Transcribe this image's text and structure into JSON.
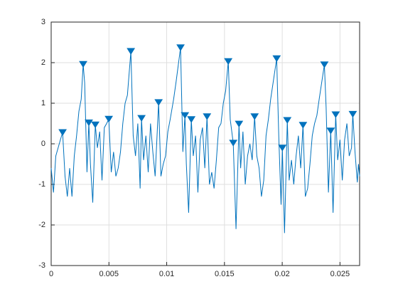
{
  "chart_data": {
    "type": "line",
    "xlim": [
      0,
      0.0267
    ],
    "ylim": [
      -3,
      3
    ],
    "xticks": [
      0,
      0.005,
      0.01,
      0.015,
      0.02,
      0.025
    ],
    "yticks": [
      -3,
      -2,
      -1,
      0,
      1,
      2,
      3
    ],
    "grid": true,
    "series": [
      {
        "color": "#0072BD",
        "marker": "none",
        "x": [
          0,
          0.0002,
          0.0004,
          0.0006,
          0.0008,
          0.00099,
          0.0012,
          0.0014,
          0.0016,
          0.0018,
          0.002,
          0.0022,
          0.0024,
          0.0026,
          0.00277,
          0.0029,
          0.0031,
          0.00326,
          0.0034,
          0.0036,
          0.00382,
          0.004,
          0.0042,
          0.0044,
          0.0046,
          0.0048,
          0.00499,
          0.0052,
          0.0054,
          0.0056,
          0.0058,
          0.006,
          0.0062,
          0.0064,
          0.0066,
          0.0069,
          0.0071,
          0.0073,
          0.0075,
          0.0077,
          0.00782,
          0.008,
          0.0082,
          0.0084,
          0.0086,
          0.0088,
          0.009,
          0.0093,
          0.0095,
          0.0097,
          0.0099,
          0.0101,
          0.0103,
          0.0106,
          0.0108,
          0.0112,
          0.0114,
          0.01158,
          0.0117,
          0.0119,
          0.01213,
          0.0123,
          0.0125,
          0.0127,
          0.0129,
          0.0131,
          0.0133,
          0.01349,
          0.0137,
          0.0139,
          0.0141,
          0.0143,
          0.0145,
          0.0147,
          0.0149,
          0.0151,
          0.01533,
          0.0155,
          0.01576,
          0.0159,
          0.016,
          0.01626,
          0.0164,
          0.0166,
          0.0168,
          0.017,
          0.0172,
          0.0174,
          0.01761,
          0.0178,
          0.018,
          0.0182,
          0.0184,
          0.0186,
          0.0188,
          0.019,
          0.01952,
          0.0197,
          0.0199,
          0.02001,
          0.0202,
          0.02044,
          0.0206,
          0.0208,
          0.021,
          0.0212,
          0.0214,
          0.0216,
          0.0218,
          0.022,
          0.0222,
          0.0224,
          0.0226,
          0.0228,
          0.023,
          0.0232,
          0.02365,
          0.0238,
          0.024,
          0.0242,
          0.0244,
          0.02463,
          0.0248,
          0.025,
          0.0252,
          0.0254,
          0.0256,
          0.0258,
          0.026,
          0.02611,
          0.0263,
          0.0265,
          0.0266,
          0.0267
        ],
        "y": [
          -0.6,
          -1.2,
          -0.3,
          -0.1,
          0.1,
          0.28,
          -0.8,
          -1.3,
          -0.6,
          -1.3,
          -0.3,
          0.2,
          0.8,
          1.1,
          1.96,
          1.5,
          -0.7,
          0.52,
          -0.5,
          -1.45,
          0.47,
          -0.1,
          0.3,
          -0.9,
          0.4,
          0.5,
          0.61,
          -0.7,
          -0.2,
          -0.8,
          -0.6,
          -0.2,
          0.5,
          1.0,
          1.2,
          2.28,
          0.2,
          -0.3,
          0.5,
          -1.1,
          0.63,
          -0.4,
          0.2,
          -0.7,
          0.5,
          -0.2,
          -0.8,
          1.02,
          -0.8,
          -0.5,
          -0.3,
          0.3,
          0.6,
          1.1,
          1.5,
          2.37,
          -0.2,
          0.7,
          -0.5,
          -1.7,
          0.6,
          -0.3,
          0.2,
          -1.2,
          0.1,
          0.4,
          -0.6,
          0.67,
          -1.0,
          -0.7,
          -1.1,
          -0.4,
          0.4,
          0.5,
          1.0,
          1.3,
          2.03,
          0.6,
          0.02,
          -1.2,
          -2.1,
          0.49,
          -0.6,
          0.3,
          -1.0,
          -0.3,
          0.0,
          -0.4,
          0.67,
          -0.3,
          -0.6,
          -1.3,
          -0.9,
          0.2,
          0.6,
          1.1,
          2.1,
          0.2,
          -1.5,
          -0.1,
          -2.2,
          0.58,
          -0.9,
          -0.4,
          -1.0,
          -0.3,
          0.2,
          -0.6,
          0.46,
          -1.3,
          -1.1,
          -0.5,
          0.2,
          0.5,
          0.7,
          1.1,
          1.95,
          0.9,
          -1.2,
          0.32,
          -1.7,
          0.72,
          -0.4,
          0.1,
          -0.9,
          0.1,
          0.5,
          -0.3,
          -0.1,
          0.73,
          -0.2,
          -0.95,
          -0.5,
          -0.8
        ]
      },
      {
        "color": "#0072BD",
        "marker": "triangle-down",
        "x": [
          0.00099,
          0.00277,
          0.00326,
          0.00382,
          0.00499,
          0.0069,
          0.00782,
          0.0093,
          0.0112,
          0.01158,
          0.01213,
          0.01349,
          0.01533,
          0.01576,
          0.01626,
          0.01761,
          0.01952,
          0.02001,
          0.02044,
          0.0218,
          0.02365,
          0.0242,
          0.02463,
          0.02611
        ],
        "y": [
          0.28,
          1.96,
          0.52,
          0.47,
          0.61,
          2.28,
          0.63,
          1.02,
          2.37,
          0.7,
          0.6,
          0.67,
          2.03,
          0.02,
          0.49,
          0.67,
          2.1,
          -0.1,
          0.58,
          0.46,
          1.95,
          0.32,
          0.72,
          0.73
        ]
      }
    ]
  }
}
